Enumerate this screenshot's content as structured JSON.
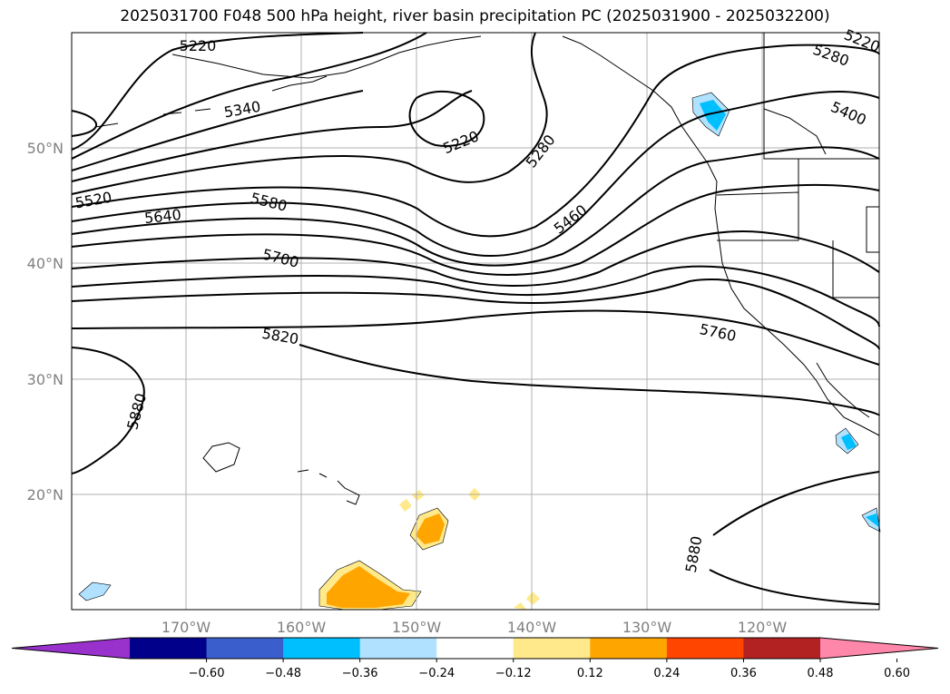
{
  "title": "2025031700 F048 500 hPa height, river basin precipitation PC (2025031900 - 2025032200)",
  "lat_labels": [
    "50°N",
    "40°N",
    "30°N",
    "20°N"
  ],
  "lon_labels": [
    "170°W",
    "160°W",
    "150°W",
    "140°W",
    "130°W",
    "120°W"
  ],
  "contour_labels": [
    "5220",
    "5340",
    "5220",
    "5280",
    "5520",
    "5640",
    "5580",
    "5700",
    "5460",
    "5820",
    "5760",
    "5880",
    "5880",
    "5280",
    "5400",
    "5220"
  ],
  "colorbar": {
    "ticks": [
      "−0.60",
      "−0.48",
      "−0.36",
      "−0.24",
      "−0.12",
      "0.12",
      "0.24",
      "0.36",
      "0.48",
      "0.60"
    ],
    "colors": [
      "#9932cc",
      "#00008b",
      "#3a5fcd",
      "#00bfff",
      "#b0e2ff",
      "#ffffff",
      "#ffe98a",
      "#ffa500",
      "#ff4500",
      "#b22222",
      "#ff88aa"
    ]
  }
}
